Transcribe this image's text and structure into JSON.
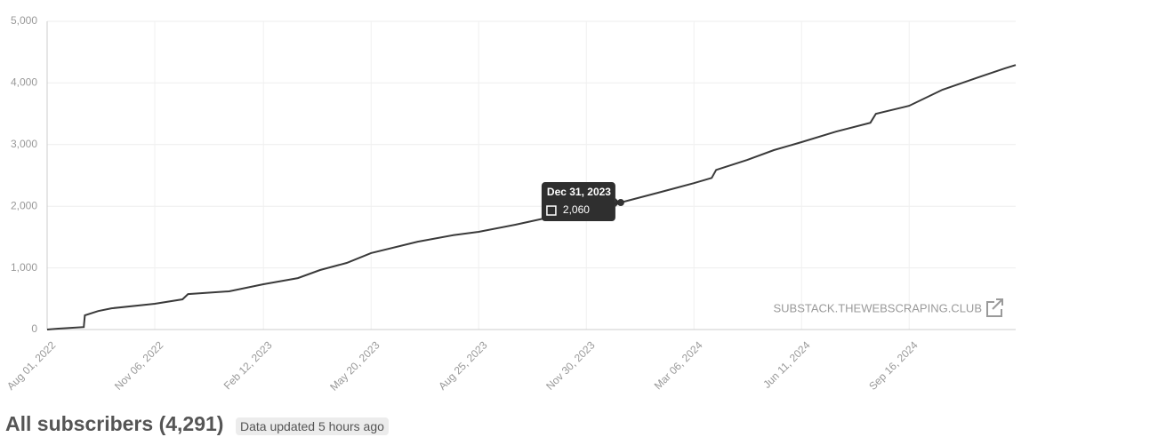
{
  "chart_data": {
    "type": "line",
    "x": [
      "2022-08-01",
      "2022-08-11",
      "2022-09-03",
      "2022-09-04",
      "2022-09-16",
      "2022-09-28",
      "2022-11-06",
      "2022-12-01",
      "2022-12-06",
      "2023-01-12",
      "2023-02-12",
      "2023-03-15",
      "2023-04-04",
      "2023-04-28",
      "2023-05-20",
      "2023-07-01",
      "2023-08-02",
      "2023-08-25",
      "2023-09-27",
      "2023-10-30",
      "2023-11-30",
      "2023-12-31",
      "2024-02-03",
      "2024-03-06",
      "2024-03-22",
      "2024-03-26",
      "2024-04-23",
      "2024-05-17",
      "2024-06-11",
      "2024-07-12",
      "2024-08-12",
      "2024-08-17",
      "2024-09-16",
      "2024-10-16",
      "2024-11-17",
      "2024-12-11",
      "2024-12-21"
    ],
    "series": [
      {
        "name": "All subscribers",
        "color": "#3a3a3a",
        "values": [
          0,
          15,
          40,
          230,
          300,
          345,
          418,
          490,
          575,
          620,
          735,
          835,
          965,
          1080,
          1240,
          1425,
          1530,
          1585,
          1700,
          1830,
          1960,
          2060,
          2220,
          2375,
          2460,
          2590,
          2750,
          2910,
          3040,
          3210,
          3355,
          3500,
          3630,
          3890,
          4090,
          4235,
          4291
        ]
      }
    ],
    "xlim": [
      "2022-08-01",
      "2024-12-21"
    ],
    "xticks": [
      {
        "value": "2022-08-01",
        "label": "Aug 01, 2022"
      },
      {
        "value": "2022-11-06",
        "label": "Nov 06, 2022"
      },
      {
        "value": "2023-02-12",
        "label": "Feb 12, 2023"
      },
      {
        "value": "2023-05-20",
        "label": "May 20, 2023"
      },
      {
        "value": "2023-08-25",
        "label": "Aug 25, 2023"
      },
      {
        "value": "2023-11-30",
        "label": "Nov 30, 2023"
      },
      {
        "value": "2024-03-06",
        "label": "Mar 06, 2024"
      },
      {
        "value": "2024-06-11",
        "label": "Jun 11, 2024"
      },
      {
        "value": "2024-09-16",
        "label": "Sep 16, 2024"
      }
    ],
    "ylim": [
      0,
      5000
    ],
    "yticks": [
      0,
      {
        "value": 1000,
        "label": "1,000"
      },
      {
        "value": 2000,
        "label": "2,000"
      },
      {
        "value": 3000,
        "label": "3,000"
      },
      {
        "value": 4000,
        "label": "4,000"
      },
      {
        "value": 5000,
        "label": "5,000"
      }
    ],
    "grid": true,
    "tooltip": {
      "x": "2023-12-31",
      "label": "Dec 31, 2023",
      "value": 2060,
      "value_label": "2,060"
    },
    "watermark": "SUBSTACK.THEWEBSCRAPING.CLUB",
    "title": "All subscribers (4,291)",
    "badge": "Data updated 5 hours ago"
  }
}
